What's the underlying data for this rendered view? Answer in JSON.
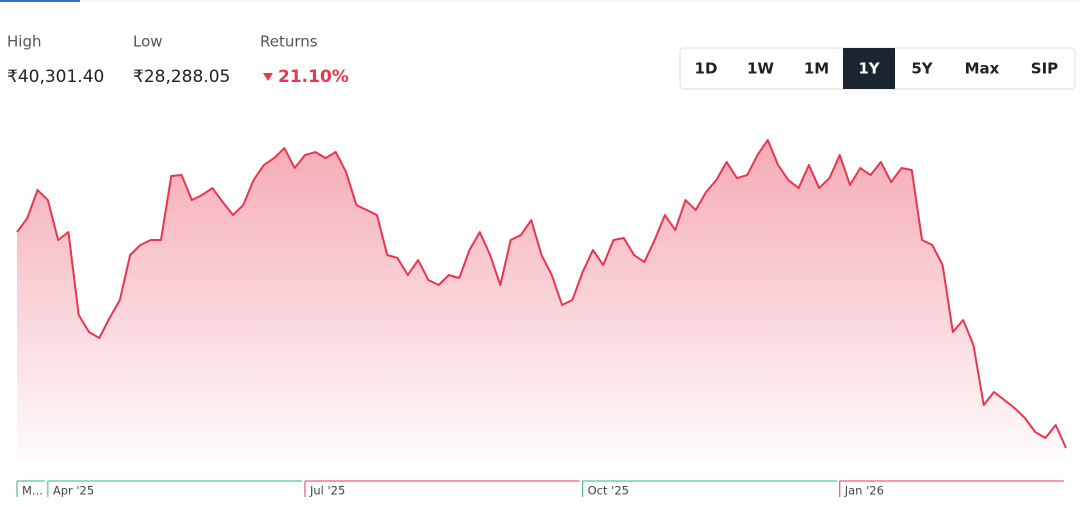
{
  "header": {
    "stats": [
      {
        "label": "High",
        "value": "₹40,301.40"
      },
      {
        "label": "Low",
        "value": "₹28,288.05"
      },
      {
        "label": "Returns",
        "value": "21.10%"
      }
    ],
    "ranges": [
      "1D",
      "1W",
      "1M",
      "1Y",
      "5Y",
      "Max",
      "SIP"
    ],
    "selected": 3
  },
  "chart_data": {
    "type": "area",
    "color": "#e8364f",
    "ylim": [
      28288.05,
      40301.4
    ],
    "categories": [
      "M...",
      null,
      null,
      "Apr '25",
      null,
      null,
      null,
      null,
      null,
      null,
      null,
      null,
      null,
      null,
      null,
      null,
      null,
      null,
      null,
      null,
      null,
      null,
      null,
      null,
      null,
      null,
      null,
      null,
      "Jul '25",
      null,
      null,
      null,
      null,
      null,
      null,
      null,
      null,
      null,
      null,
      null,
      null,
      null,
      null,
      null,
      null,
      null,
      null,
      null,
      null,
      null,
      null,
      null,
      null,
      null,
      null,
      "Oct '25",
      null,
      null,
      null,
      null,
      null,
      null,
      null,
      null,
      null,
      null,
      null,
      null,
      null,
      null,
      null,
      null,
      null,
      null,
      null,
      null,
      null,
      null,
      null,
      null,
      "Jan '26",
      null,
      null,
      null,
      null,
      null,
      null,
      null,
      null,
      null,
      null,
      null,
      null,
      null,
      null,
      null,
      null,
      null,
      null,
      null,
      null,
      null,
      null
    ],
    "period_colors": [
      "#2eb872",
      "#2eb872",
      "#e8364f",
      "#2eb872",
      "#e8364f"
    ],
    "values": [
      36712,
      37258,
      38350,
      37960,
      36400,
      36712,
      33475,
      32812,
      32578,
      33358,
      34060,
      35815,
      36205,
      36400,
      36400,
      38896,
      38935,
      37960,
      38155,
      38428,
      37882,
      37375,
      37765,
      38740,
      39325,
      39598,
      39988,
      39208,
      39715,
      39832,
      39598,
      39832,
      39052,
      37765,
      37570,
      37375,
      35815,
      35698,
      35035,
      35620,
      34840,
      34645,
      35035,
      34918,
      36010,
      36712,
      35815,
      34645,
      36400,
      36595,
      37180,
      35815,
      35035,
      33865,
      34060,
      35152,
      36010,
      35425,
      36400,
      36478,
      35815,
      35542,
      36400,
      37375,
      36790,
      37960,
      37570,
      38272,
      38740,
      39442,
      38818,
      38935,
      39715,
      40301.4,
      39325,
      38740,
      38428,
      39325,
      38428,
      38818,
      39715,
      38545,
      39208,
      38935,
      39442,
      38662,
      39208,
      39130,
      36400,
      36205,
      35425,
      32812,
      33280,
      32305,
      29965,
      30472,
      30160,
      29848,
      29458,
      28912,
      28678,
      29185,
      28288.05
    ]
  }
}
